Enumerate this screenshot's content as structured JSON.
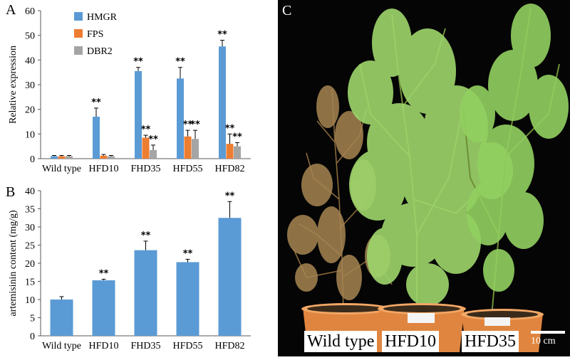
{
  "panels": {
    "a": {
      "letter": "A"
    },
    "b": {
      "letter": "B"
    },
    "c": {
      "letter": "C"
    }
  },
  "chart_data": [
    {
      "type": "bar",
      "ylabel": "Relative expression",
      "ylim": [
        0,
        60
      ],
      "yticks": [
        0,
        10,
        20,
        30,
        40,
        50,
        60
      ],
      "categories": [
        "Wild type",
        "HFD10",
        "FHD35",
        "HFD55",
        "HFD82"
      ],
      "legend": "top-left",
      "series": [
        {
          "name": "HMGR",
          "color": "#5b9bd5",
          "values": [
            1,
            17,
            35.5,
            32.5,
            45.5
          ],
          "errors": [
            0.3,
            3.5,
            1.5,
            4.5,
            2.5
          ],
          "marks": [
            "",
            "**",
            "**",
            "**",
            "**"
          ]
        },
        {
          "name": "FPS",
          "color": "#ed7d31",
          "values": [
            1,
            1.2,
            8.5,
            9,
            6
          ],
          "errors": [
            0.3,
            0.5,
            1,
            2.5,
            4
          ],
          "marks": [
            "",
            "",
            "**",
            "**",
            "**"
          ]
        },
        {
          "name": "DBR2",
          "color": "#a5a5a5",
          "values": [
            1,
            1,
            3.5,
            8,
            5
          ],
          "errors": [
            0.3,
            0.3,
            2,
            3.5,
            1.5
          ],
          "marks": [
            "",
            "",
            "**",
            "**",
            "**"
          ]
        }
      ]
    },
    {
      "type": "bar",
      "ylabel": "artemisinin content (mg/g)",
      "ylim": [
        0,
        40
      ],
      "yticks": [
        0,
        5,
        10,
        15,
        20,
        25,
        30,
        35,
        40
      ],
      "categories": [
        "Wild type",
        "HFD10",
        "FHD35",
        "HFD55",
        "HFD82"
      ],
      "series": [
        {
          "color": "#5b9bd5",
          "values": [
            10,
            15.3,
            23.6,
            20.3,
            32.5
          ],
          "errors": [
            0.8,
            0.3,
            2.5,
            0.8,
            4.5
          ],
          "marks": [
            "",
            "**",
            "**",
            "**",
            "**"
          ]
        }
      ]
    }
  ],
  "photo": {
    "labels": [
      "Wild type",
      "HFD10",
      "HFD35"
    ],
    "scale_bar": "10 cm"
  }
}
